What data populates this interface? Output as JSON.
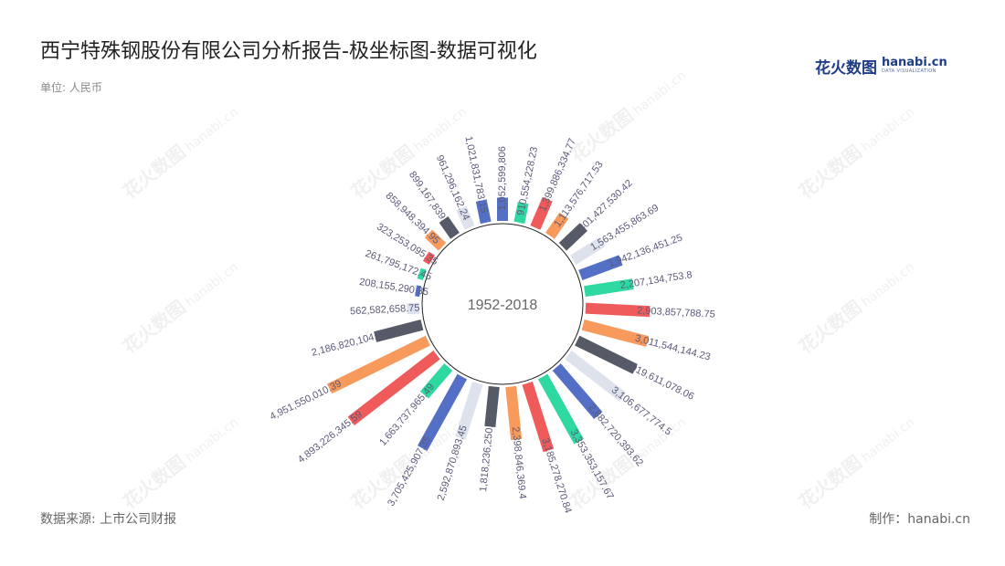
{
  "header": {
    "title": "西宁特殊钢股份有限公司分析报告-极坐标图-数据可视化",
    "unit": "单位: 人民币"
  },
  "logo": {
    "cn": "花火数图",
    "en": "hanabi.cn",
    "sub": "DATA VISUALIZATION"
  },
  "footer": {
    "source": "数据来源: 上市公司财报",
    "credit": "制作：hanabi.cn"
  },
  "watermark": {
    "cn": "花火数图",
    "en": "hanabi.cn"
  },
  "colors": [
    "#5470c6",
    "#2fd8a1",
    "#ef5a5a",
    "#f79a5c",
    "#555a66",
    "#dde2ec"
  ],
  "chart_data": {
    "type": "bar",
    "subtype": "polar-radial-bar",
    "center_label": "1952-2018",
    "values": [
      1052599806,
      910554228.23,
      1399886334.77,
      1113576717.53,
      1301427530.42,
      1563455863.69,
      1942136451.25,
      2207134753.8,
      2903857788.75,
      3011544144.23,
      2919611078.06,
      3106677774.5,
      2882720393.62,
      3353353157.67,
      3185278270.84,
      2398846369.4,
      1818236250.71,
      2592870893.45,
      3705425907.35,
      1663737965.49,
      4893226345.59,
      4951550010.39,
      2186820104.55,
      562582658.75,
      208155290.35,
      261795172.45,
      323253095.35,
      858948394.95,
      899167839.35,
      961296162.24,
      1021831783.15
    ],
    "labels": [
      "1,052,599,806",
      "910,554,228.23",
      "1,399,886,334.77",
      "1,113,576,717.53",
      "1,301,427,530.42",
      "1,563,455,863.69",
      "1,942,136,451.25",
      "2,207,134,753.8",
      "2,903,857,788.75",
      "3,011,544,144.23",
      "2,919,611,078.06",
      "3,106,677,774.5",
      "2,882,720,393.62",
      "3,353,353,157.67",
      "3,185,278,270.84",
      "2,398,846,369.4",
      "1,818,236,250.71",
      "2,592,870,893.45",
      "3,705,425,907.35",
      "1,663,737,965.49",
      "4,893,226,345.59",
      "4,951,550,010.39",
      "2,186,820,104.55",
      "562,582,658.75",
      "208,155,290.35",
      "261,795,172.45",
      "323,253,095.35",
      "858,948,394.95",
      "899,167,839.35",
      "961,296,162.24",
      "1,021,831,783.15"
    ]
  }
}
